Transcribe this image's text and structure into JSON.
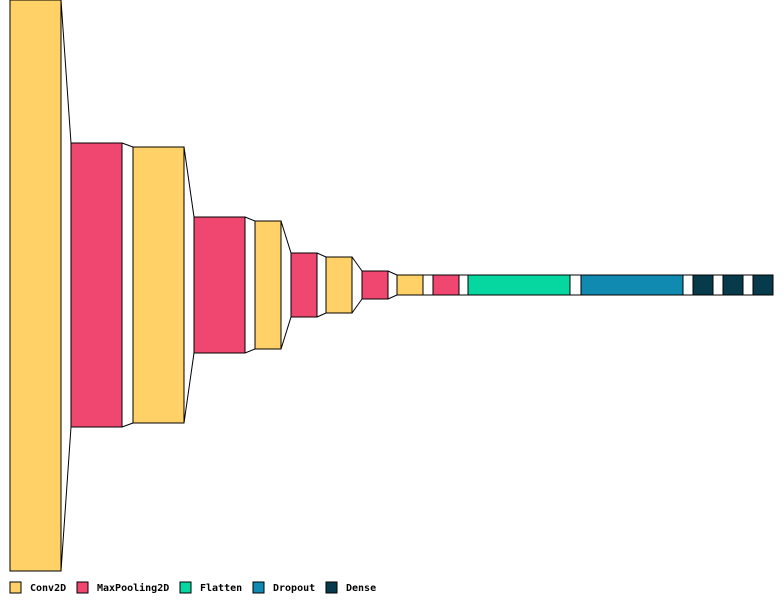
{
  "layer_types": {
    "conv2d": {
      "label": "Conv2D",
      "color": "#FFD166"
    },
    "maxpool": {
      "label": "MaxPooling2D",
      "color": "#EF476F"
    },
    "flatten": {
      "label": "Flatten",
      "color": "#06D6A0"
    },
    "dropout": {
      "label": "Dropout",
      "color": "#118AB2"
    },
    "dense": {
      "label": "Dense",
      "color": "#073B4C"
    }
  },
  "legend_order": [
    "conv2d",
    "maxpool",
    "flatten",
    "dropout",
    "dense"
  ],
  "layers": [
    {
      "type": "conv2d"
    },
    {
      "type": "maxpool"
    },
    {
      "type": "conv2d"
    },
    {
      "type": "maxpool"
    },
    {
      "type": "conv2d"
    },
    {
      "type": "maxpool"
    },
    {
      "type": "conv2d"
    },
    {
      "type": "maxpool"
    },
    {
      "type": "conv2d"
    },
    {
      "type": "maxpool"
    },
    {
      "type": "flatten"
    },
    {
      "type": "dropout"
    },
    {
      "type": "dense"
    },
    {
      "type": "dense"
    },
    {
      "type": "dense"
    }
  ]
}
